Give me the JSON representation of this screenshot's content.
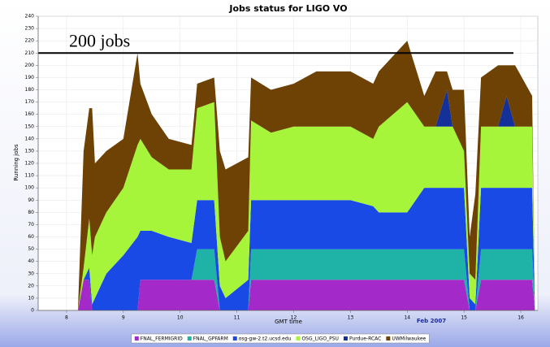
{
  "chart_data": {
    "type": "stacked_area",
    "title": "Jobs status for LIGO VO",
    "y_label": "Running jobs",
    "x_label": "GMT time",
    "x_sublabel": "Feb 2007",
    "annotation": {
      "text": "200 jobs",
      "y": 210
    },
    "xlim": [
      7.5,
      16.3
    ],
    "xticks": [
      8,
      9,
      10,
      11,
      12,
      13,
      14,
      15,
      16
    ],
    "ylim": [
      0,
      240
    ],
    "yticks": [
      0,
      10,
      20,
      30,
      40,
      50,
      60,
      70,
      80,
      90,
      100,
      110,
      120,
      130,
      140,
      150,
      160,
      170,
      180,
      190,
      200,
      210,
      220,
      230,
      240
    ],
    "grid": true,
    "x": [
      8.2,
      8.3,
      8.4,
      8.45,
      8.5,
      8.7,
      9.0,
      9.25,
      9.3,
      9.5,
      9.8,
      10.2,
      10.3,
      10.6,
      10.7,
      10.8,
      11.2,
      11.25,
      11.6,
      12.0,
      12.4,
      12.6,
      13.0,
      13.4,
      13.5,
      14.0,
      14.3,
      14.5,
      14.7,
      14.8,
      15.0,
      15.1,
      15.2,
      15.3,
      15.6,
      15.75,
      15.9,
      16.2,
      16.25
    ],
    "series": [
      {
        "name": "FNAL_FERMIGRID",
        "color": "#a329c9",
        "values": [
          0,
          25,
          25,
          0,
          0,
          0,
          0,
          0,
          25,
          25,
          25,
          25,
          25,
          25,
          0,
          0,
          0,
          25,
          25,
          25,
          25,
          25,
          25,
          25,
          25,
          25,
          25,
          25,
          25,
          25,
          25,
          0,
          0,
          25,
          25,
          25,
          25,
          25,
          0
        ]
      },
      {
        "name": "FNAL_GPFARM",
        "color": "#1fb3a8",
        "values": [
          0,
          0,
          0,
          0,
          0,
          0,
          0,
          0,
          0,
          0,
          0,
          0,
          25,
          25,
          0,
          0,
          0,
          25,
          25,
          25,
          25,
          25,
          25,
          25,
          25,
          25,
          25,
          25,
          25,
          25,
          25,
          0,
          0,
          25,
          25,
          25,
          25,
          25,
          0
        ]
      },
      {
        "name": "osg-gw-2.t2.ucsd.edu",
        "color": "#1a4ae6",
        "values": [
          0,
          0,
          10,
          5,
          10,
          30,
          45,
          60,
          40,
          40,
          35,
          30,
          40,
          40,
          20,
          10,
          25,
          40,
          40,
          40,
          40,
          40,
          40,
          35,
          30,
          30,
          50,
          50,
          50,
          50,
          50,
          10,
          5,
          50,
          50,
          50,
          50,
          50,
          0
        ]
      },
      {
        "name": "OSG_LIGO_PSU",
        "color": "#a6f53a",
        "values": [
          0,
          10,
          40,
          40,
          50,
          50,
          55,
          75,
          75,
          60,
          55,
          60,
          75,
          80,
          40,
          30,
          40,
          65,
          55,
          60,
          60,
          60,
          60,
          55,
          70,
          90,
          50,
          50,
          50,
          50,
          30,
          20,
          20,
          50,
          50,
          50,
          50,
          50,
          0
        ]
      },
      {
        "name": "Purdue-RCAC",
        "color": "#14319a",
        "values": [
          0,
          0,
          0,
          0,
          0,
          0,
          0,
          0,
          0,
          0,
          0,
          0,
          0,
          0,
          0,
          0,
          0,
          0,
          0,
          0,
          0,
          0,
          0,
          0,
          0,
          0,
          0,
          0,
          30,
          0,
          0,
          0,
          0,
          0,
          0,
          25,
          0,
          0,
          0
        ]
      },
      {
        "name": "UWMilwaukee",
        "color": "#6e4104",
        "values": [
          0,
          95,
          90,
          120,
          60,
          50,
          40,
          75,
          45,
          35,
          25,
          20,
          20,
          20,
          70,
          75,
          60,
          35,
          35,
          35,
          45,
          45,
          45,
          45,
          45,
          50,
          25,
          45,
          15,
          30,
          50,
          30,
          70,
          40,
          50,
          25,
          50,
          25,
          0
        ]
      }
    ]
  }
}
